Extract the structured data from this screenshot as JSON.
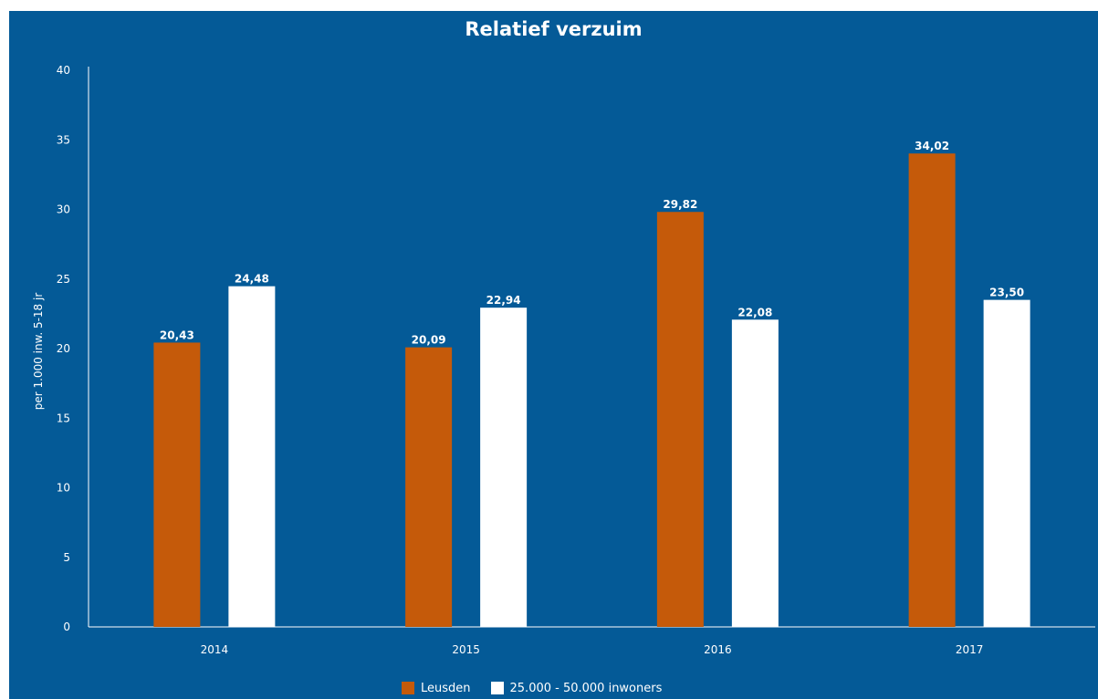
{
  "chart_data": {
    "type": "bar",
    "title": "Relatief verzuim",
    "xlabel": "",
    "ylabel": "per 1.000 inw. 5-18 jr",
    "categories": [
      "2014",
      "2015",
      "2016",
      "2017"
    ],
    "series": [
      {
        "name": "Leusden",
        "color": "#c55a0a",
        "values": [
          20.43,
          20.09,
          29.82,
          34.02
        ],
        "labels": [
          "20,43",
          "20,09",
          "29,82",
          "34,02"
        ]
      },
      {
        "name": "25.000 - 50.000 inwoners",
        "color": "#ffffff",
        "values": [
          24.48,
          22.94,
          22.08,
          23.5
        ],
        "labels": [
          "24,48",
          "22,94",
          "22,08",
          "23,50"
        ]
      }
    ],
    "ylim": [
      0,
      40
    ],
    "yticks": [
      0,
      5,
      10,
      15,
      20,
      25,
      30,
      35,
      40
    ],
    "grid": false,
    "legend_position": "bottom",
    "background_color": "#045a97"
  }
}
